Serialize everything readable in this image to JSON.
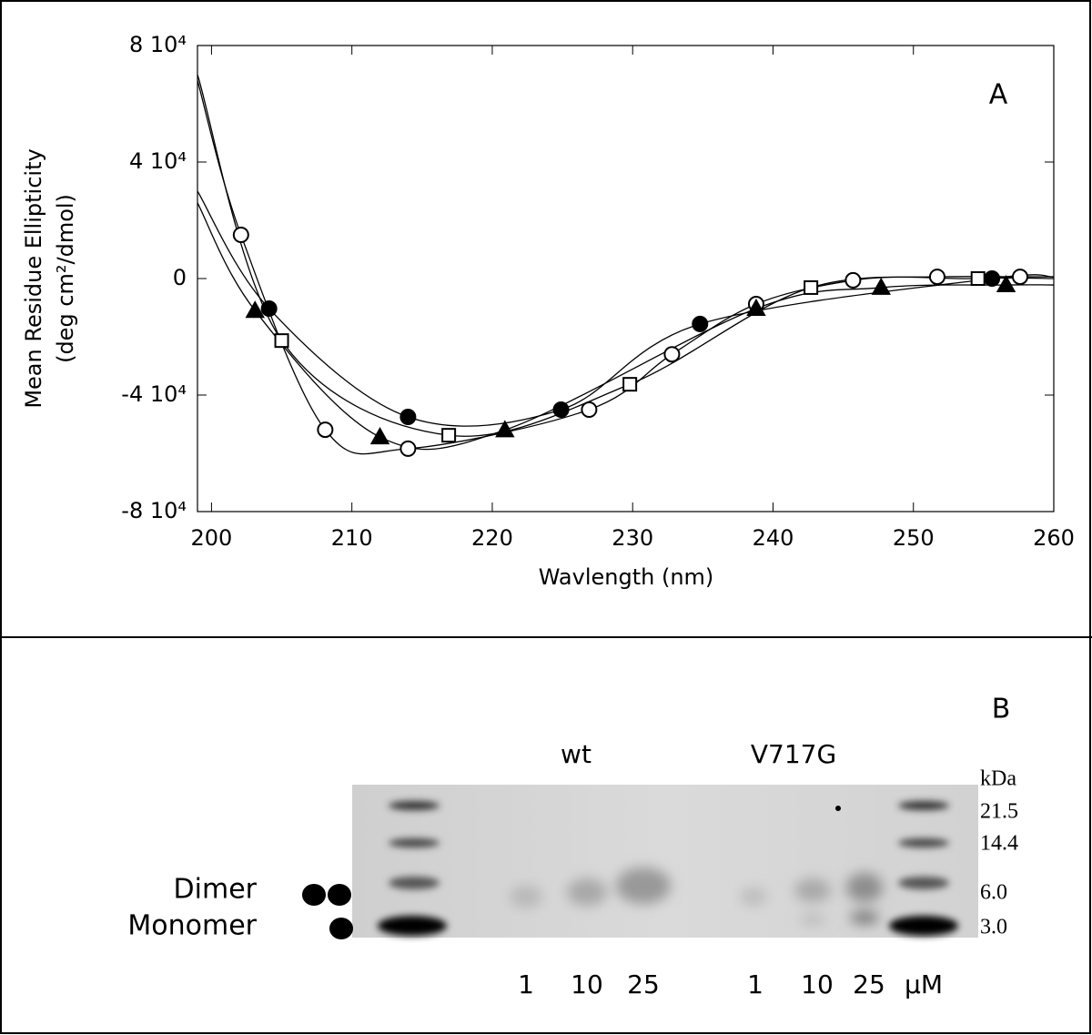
{
  "chart_data": {
    "type": "line",
    "panel_label": "A",
    "xlabel": "Wavlength (nm)",
    "ylabel": [
      "Mean Residue Ellipticity",
      "(deg cm²/dmol)"
    ],
    "xlim": [
      199,
      260
    ],
    "xticks": [
      200,
      210,
      220,
      230,
      240,
      250,
      260
    ],
    "ylim": [
      -80000,
      80000
    ],
    "yticks": [
      {
        "value": -80000,
        "label": "-8 10⁴"
      },
      {
        "value": -40000,
        "label": "-4 10⁴"
      },
      0,
      {
        "value": 40000,
        "label": "4 10⁴"
      },
      {
        "value": 80000,
        "label": "8 10⁴"
      }
    ],
    "series": [
      {
        "marker": "open-circle",
        "color": "#000000",
        "x": [
          199,
          202.1,
          208.1,
          214.0,
          226.9,
          232.8,
          238.8,
          245.7,
          251.7,
          257.6,
          260
        ],
        "values": [
          68000,
          15000,
          -51900,
          -58400,
          -45000,
          -26000,
          -8750,
          -600,
          600,
          600,
          600
        ]
      },
      {
        "marker": "filled-circle",
        "color": "#000000",
        "x": [
          199,
          204.1,
          214.0,
          224.9,
          234.8,
          255.6,
          260
        ],
        "values": [
          30000,
          -10300,
          -47500,
          -45000,
          -15600,
          0,
          500
        ]
      },
      {
        "marker": "filled-triangle",
        "color": "#000000",
        "x": [
          199,
          203.1,
          212.0,
          220.9,
          238.8,
          247.7,
          256.6,
          260
        ],
        "values": [
          26000,
          -11000,
          -54400,
          -52000,
          -10300,
          -3100,
          -2200,
          -2200
        ]
      },
      {
        "marker": "open-square",
        "color": "#000000",
        "x": [
          199,
          205.0,
          216.9,
          229.8,
          242.7,
          254.6,
          260
        ],
        "values": [
          70000,
          -21300,
          -53800,
          -36300,
          -3100,
          0,
          0
        ]
      }
    ]
  },
  "panel_b": {
    "panel_label": "B",
    "groups": [
      "wt",
      "V717G"
    ],
    "unit_header": "kDa",
    "markers": [
      "21.5",
      "14.4",
      "6.0",
      "3.0"
    ],
    "species": [
      "Dimer",
      "Monomer"
    ],
    "lanes": [
      "1",
      "10",
      "25",
      "1",
      "10",
      "25",
      "µM"
    ]
  }
}
